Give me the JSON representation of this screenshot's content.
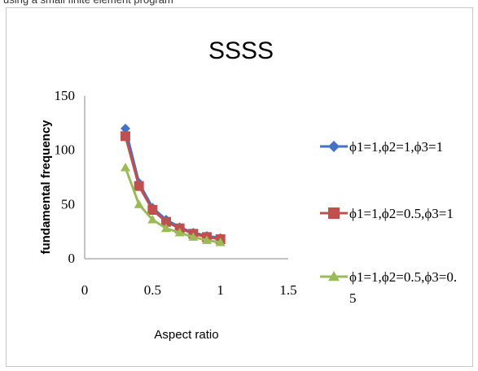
{
  "caption_fragment": "using a small finite element program",
  "chart_data": {
    "type": "line",
    "title": "SSSS",
    "xlabel": "Aspect ratio",
    "ylabel": "fundamental frequency",
    "xlim": [
      0,
      1.5
    ],
    "ylim": [
      0,
      150
    ],
    "xticks": [
      "0",
      "0.5",
      "1",
      "1.5"
    ],
    "yticks": [
      "0",
      "50",
      "100",
      "150"
    ],
    "grid": false,
    "legend_position": "right",
    "x": [
      0.3,
      0.4,
      0.5,
      0.6,
      0.7,
      0.8,
      0.9,
      1.0
    ],
    "series": [
      {
        "name": "ϕ1=1,ϕ2=1,ϕ3=1",
        "color": "#4472c4",
        "marker": "diamond",
        "values": [
          120,
          70,
          47,
          36,
          29,
          24,
          21,
          19
        ]
      },
      {
        "name": "ϕ1=1,ϕ2=0.5,ϕ3=1",
        "color": "#c0504d",
        "marker": "square",
        "values": [
          113,
          67,
          45,
          34,
          28,
          23,
          20,
          18
        ]
      },
      {
        "name": "ϕ1=1,ϕ2=0.5,ϕ3=0.5",
        "color": "#9bbb59",
        "marker": "triangle",
        "values": [
          84,
          50,
          36,
          28,
          24,
          20,
          17,
          15
        ]
      }
    ],
    "legend_lines": [
      [
        "ϕ1=1,ϕ2=1,ϕ3=1"
      ],
      [
        "ϕ1=1,ϕ2=0.5,ϕ3=1"
      ],
      [
        "ϕ1=1,ϕ2=0.5,ϕ3=0.",
        "5"
      ]
    ]
  }
}
